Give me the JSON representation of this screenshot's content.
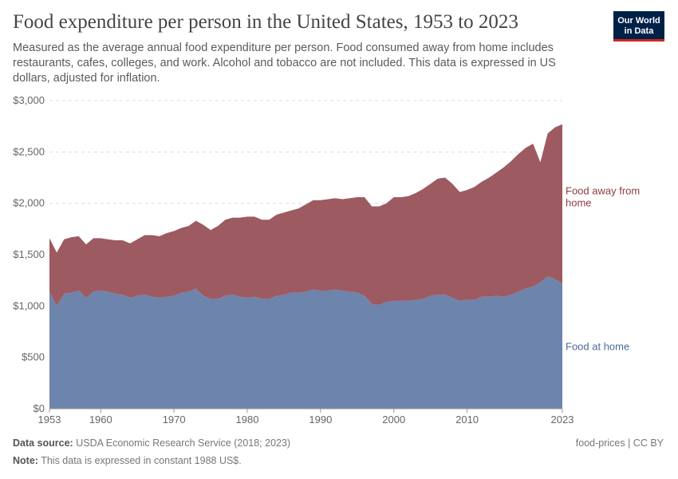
{
  "title": "Food expenditure per person in the United States, 1953 to 2023",
  "subtitle": "Measured as the average annual food expenditure per person. Food consumed away from home includes restaurants, cafes, colleges, and work. Alcohol and tobacco are not included. This data is expressed in US dollars, adjusted for inflation.",
  "logo": "Our World in Data",
  "footer": {
    "source_label": "Data source:",
    "source": "USDA Economic Research Service (2018; 2023)",
    "note_label": "Note:",
    "note": "This data is expressed in constant 1988 US$.",
    "license": "food-prices | CC BY"
  },
  "chart_data": {
    "type": "area",
    "stacked": true,
    "title": "Food expenditure per person in the United States, 1953 to 2023",
    "xlim": [
      1953,
      2023
    ],
    "ylim": [
      0,
      3000
    ],
    "yticks": [
      0,
      500,
      1000,
      1500,
      2000,
      2500,
      3000
    ],
    "ytick_labels": [
      "$0",
      "$500",
      "$1,000",
      "$1,500",
      "$2,000",
      "$2,500",
      "$3,000"
    ],
    "xticks": [
      1953,
      1960,
      1970,
      1980,
      1990,
      2000,
      2010,
      2023
    ],
    "xtick_labels": [
      "1953",
      "1960",
      "1970",
      "1980",
      "1990",
      "2000",
      "2010",
      "2023"
    ],
    "grid": "horizontal dashed",
    "legend": "inline-right",
    "x": [
      1953,
      1954,
      1955,
      1956,
      1957,
      1958,
      1959,
      1960,
      1961,
      1962,
      1963,
      1964,
      1965,
      1966,
      1967,
      1968,
      1969,
      1970,
      1971,
      1972,
      1973,
      1974,
      1975,
      1976,
      1977,
      1978,
      1979,
      1980,
      1981,
      1982,
      1983,
      1984,
      1985,
      1986,
      1987,
      1988,
      1989,
      1990,
      1991,
      1992,
      1993,
      1994,
      1995,
      1996,
      1997,
      1998,
      1999,
      2000,
      2001,
      2002,
      2003,
      2004,
      2005,
      2006,
      2007,
      2008,
      2009,
      2010,
      2011,
      2012,
      2013,
      2014,
      2015,
      2016,
      2017,
      2018,
      2019,
      2020,
      2021,
      2022,
      2023
    ],
    "series": [
      {
        "name": "Food at home",
        "color": "#6d84ad",
        "values": [
          1140,
          1000,
          1120,
          1130,
          1150,
          1080,
          1140,
          1150,
          1140,
          1120,
          1110,
          1080,
          1100,
          1110,
          1090,
          1080,
          1090,
          1100,
          1130,
          1140,
          1170,
          1100,
          1070,
          1070,
          1100,
          1110,
          1090,
          1080,
          1090,
          1070,
          1070,
          1100,
          1110,
          1130,
          1130,
          1140,
          1160,
          1150,
          1150,
          1160,
          1150,
          1140,
          1130,
          1100,
          1020,
          1010,
          1040,
          1050,
          1050,
          1050,
          1060,
          1070,
          1100,
          1110,
          1110,
          1080,
          1050,
          1060,
          1060,
          1090,
          1090,
          1100,
          1090,
          1110,
          1140,
          1170,
          1190,
          1230,
          1290,
          1260,
          1220
        ]
      },
      {
        "name": "Food away from home",
        "color": "#9e5a61",
        "values": [
          520,
          520,
          530,
          540,
          530,
          520,
          520,
          510,
          510,
          520,
          530,
          530,
          550,
          580,
          600,
          600,
          620,
          630,
          630,
          640,
          660,
          690,
          670,
          710,
          740,
          750,
          770,
          790,
          780,
          770,
          770,
          790,
          800,
          800,
          820,
          850,
          870,
          880,
          890,
          890,
          890,
          910,
          930,
          960,
          950,
          960,
          960,
          1010,
          1010,
          1020,
          1040,
          1070,
          1090,
          1130,
          1140,
          1110,
          1060,
          1070,
          1100,
          1120,
          1160,
          1200,
          1260,
          1300,
          1340,
          1370,
          1390,
          1170,
          1390,
          1480,
          1550
        ]
      }
    ]
  }
}
